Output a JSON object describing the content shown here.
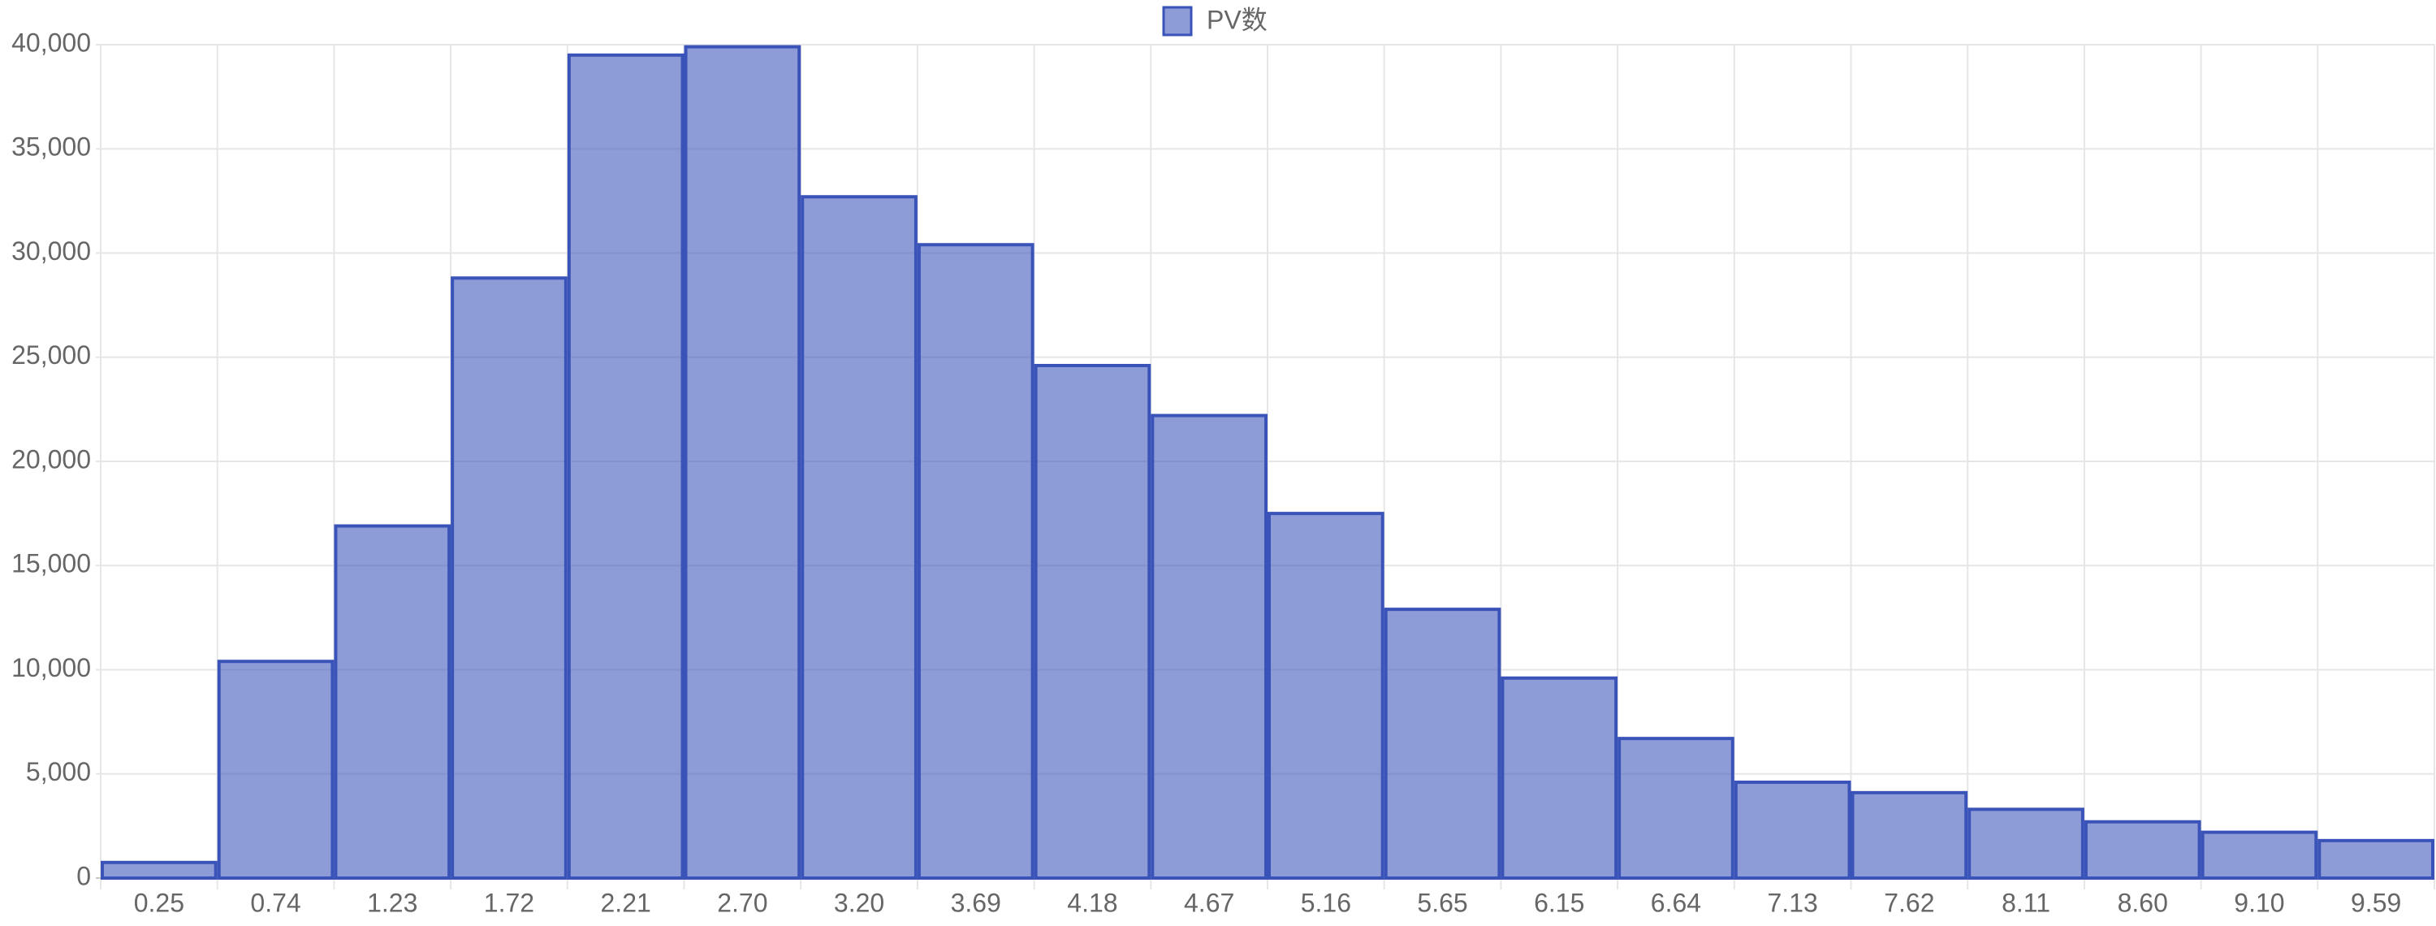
{
  "chart_data": {
    "type": "bar",
    "categories": [
      "0.25",
      "0.74",
      "1.23",
      "1.72",
      "2.21",
      "2.70",
      "3.20",
      "3.69",
      "4.18",
      "4.67",
      "5.16",
      "5.65",
      "6.15",
      "6.64",
      "7.13",
      "7.62",
      "8.11",
      "8.60",
      "9.10",
      "9.59"
    ],
    "series": [
      {
        "name": "PV数",
        "color": "#3a53b8",
        "values": [
          750,
          10400,
          16900,
          28800,
          39500,
          39900,
          32700,
          30400,
          24600,
          22200,
          17500,
          12900,
          9600,
          6700,
          4600,
          4100,
          3300,
          2700,
          2200,
          1800
        ]
      }
    ],
    "ylim": [
      0,
      40000
    ],
    "yticks": [
      0,
      {
        "value": 5000,
        "label": "5,000"
      },
      {
        "value": 10000,
        "label": "10,000"
      },
      {
        "value": 15000,
        "label": "15,000"
      },
      {
        "value": 20000,
        "label": "20,000"
      },
      {
        "value": 25000,
        "label": "25,000"
      },
      {
        "value": 30000,
        "label": "30,000"
      },
      {
        "value": 35000,
        "label": "35,000"
      },
      {
        "value": 40000,
        "label": "40,000"
      }
    ],
    "grid": true,
    "legend": "top"
  }
}
